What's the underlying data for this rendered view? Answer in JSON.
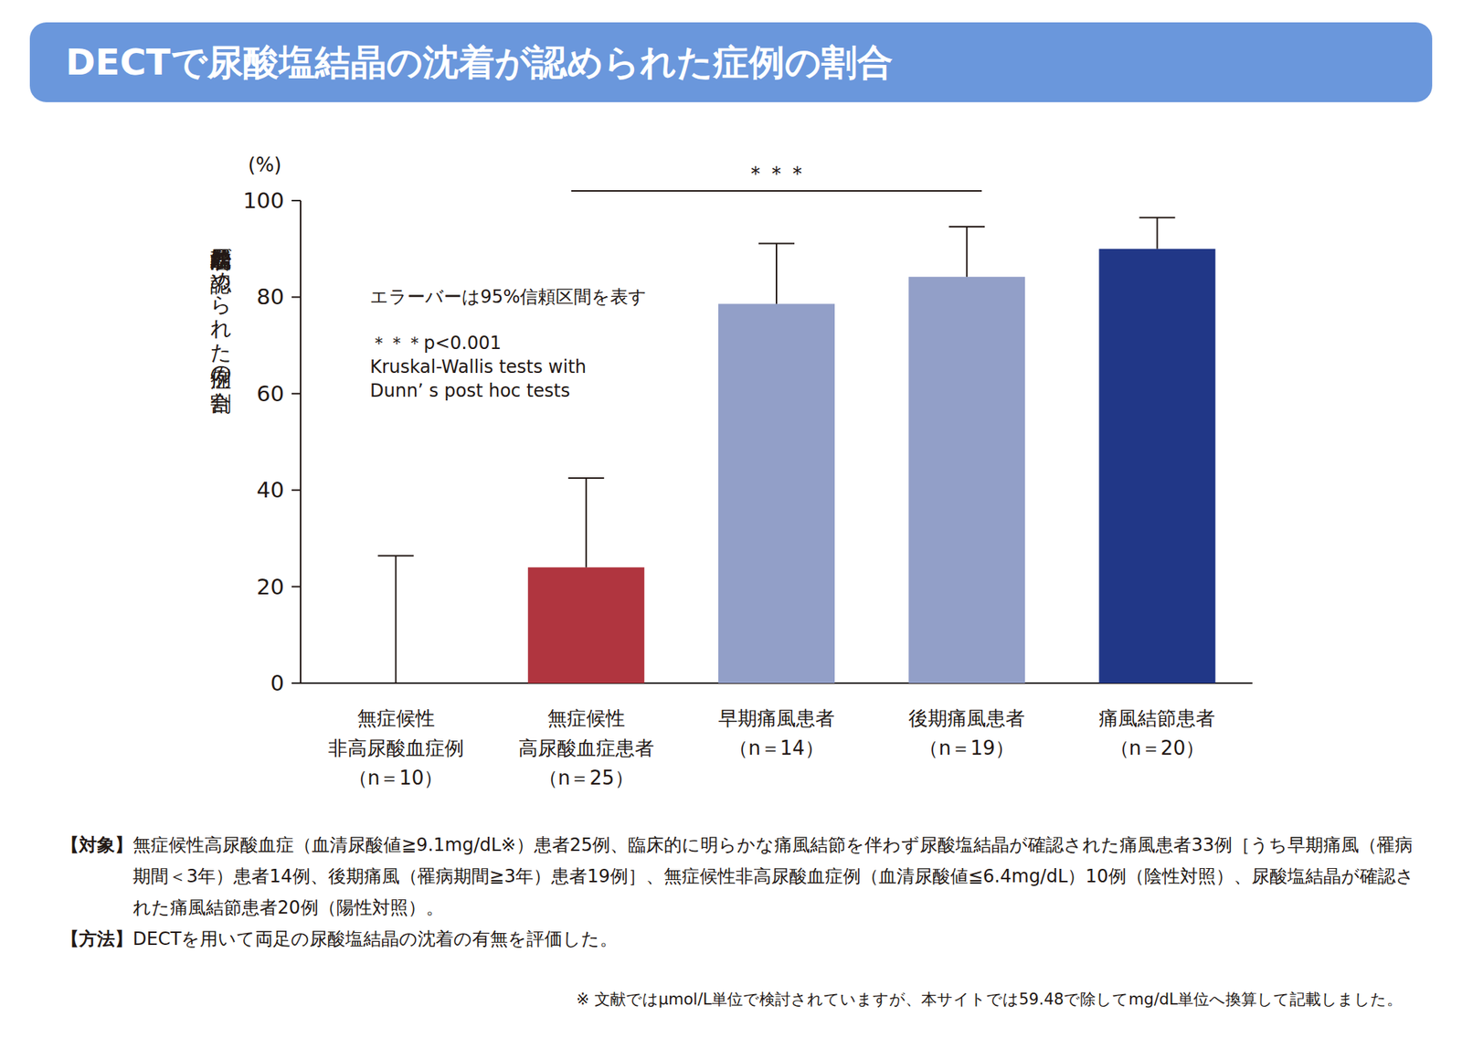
{
  "chart_data": {
    "type": "bar",
    "title": "DECTで尿酸塩結晶の沈着が認められた症例の割合",
    "y_label": "尿酸塩結晶沈着が認められた症例の割合",
    "y_unit": "(%)",
    "categories": [
      "無症候性\n非高尿酸血症例\n（n＝10）",
      "無症候性\n高尿酸血症患者\n（n＝25）",
      "早期痛風患者\n（n＝14）",
      "後期痛風患者\n（n＝19）",
      "痛風結節患者\n（n＝20）"
    ],
    "values": [
      0,
      24,
      78.6,
      84.2,
      90
    ],
    "ci_upper": [
      26.4,
      42.5,
      91.1,
      94.6,
      96.5
    ],
    "colors": [
      "#929fc8",
      "#b0353f",
      "#929fc8",
      "#929fc8",
      "#213787"
    ],
    "ylim": [
      0,
      100
    ],
    "yticks": [
      0,
      20,
      40,
      60,
      80,
      100
    ],
    "annotations": [
      "エラーバーは95%信頼区間を表す",
      "＊＊＊p<0.001",
      "Kruskal-Wallis tests with",
      "Dunn’ s post hoc tests"
    ],
    "significance": {
      "from": 1,
      "to": 3,
      "label": "＊＊＊"
    }
  },
  "footer": {
    "notes": [
      {
        "label": "【対象】",
        "text": "無症候性高尿酸血症（血清尿酸値≧9.1mg/dL※）患者25例、臨床的に明らかな痛風結節を伴わず尿酸塩結晶が確認された痛風患者33例［うち早期痛風（罹病期間＜3年）患者14例、後期痛風（罹病期間≧3年）患者19例］、無症候性非高尿酸血症例（血清尿酸値≦6.4mg/dL）10例（陰性対照）、尿酸塩結晶が確認された痛風結節患者20例（陽性対照）。"
      },
      {
        "label": "【方法】",
        "text": "DECTを用いて両足の尿酸塩結晶の沈着の有無を評価した。"
      }
    ],
    "footnote": "※ 文献ではμmol/L単位で検討されていますが、本サイトでは59.48で除してmg/dL単位へ換算して記載しました。"
  }
}
